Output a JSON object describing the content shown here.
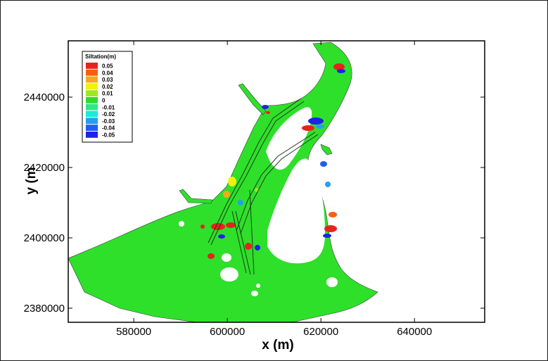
{
  "map": {
    "xlabel": "x (m)",
    "ylabel": "y (m",
    "x_range": [
      566000,
      655000
    ],
    "y_range": [
      2376000,
      2456000
    ],
    "x_ticks": [
      {
        "value": 580000,
        "label": "580000"
      },
      {
        "value": 600000,
        "label": "600000"
      },
      {
        "value": 620000,
        "label": "620000"
      },
      {
        "value": 640000,
        "label": "640000"
      }
    ],
    "y_ticks": [
      {
        "value": 2380000,
        "label": "2380000"
      },
      {
        "value": 2400000,
        "label": "2400000"
      },
      {
        "value": 2420000,
        "label": "2420000"
      },
      {
        "value": 2440000,
        "label": "2440000"
      }
    ],
    "domain_color": "#2ee02a",
    "legend": {
      "title": "Siltation(m)",
      "placement": "top-left",
      "levels": [
        {
          "label": "0.05",
          "color": "#e8231a"
        },
        {
          "label": "0.04",
          "color": "#f8600e"
        },
        {
          "label": "0.03",
          "color": "#f8a81a"
        },
        {
          "label": "0.02",
          "color": "#eef20e"
        },
        {
          "label": "0.01",
          "color": "#9ee81e"
        },
        {
          "label": "0",
          "color": "#2edd2a"
        },
        {
          "label": "-0.01",
          "color": "#2ee888"
        },
        {
          "label": "-0.02",
          "color": "#18ecd6"
        },
        {
          "label": "-0.03",
          "color": "#22a0f0"
        },
        {
          "label": "-0.04",
          "color": "#1e5ef0"
        },
        {
          "label": "-0.05",
          "color": "#1e22e8"
        }
      ]
    }
  }
}
